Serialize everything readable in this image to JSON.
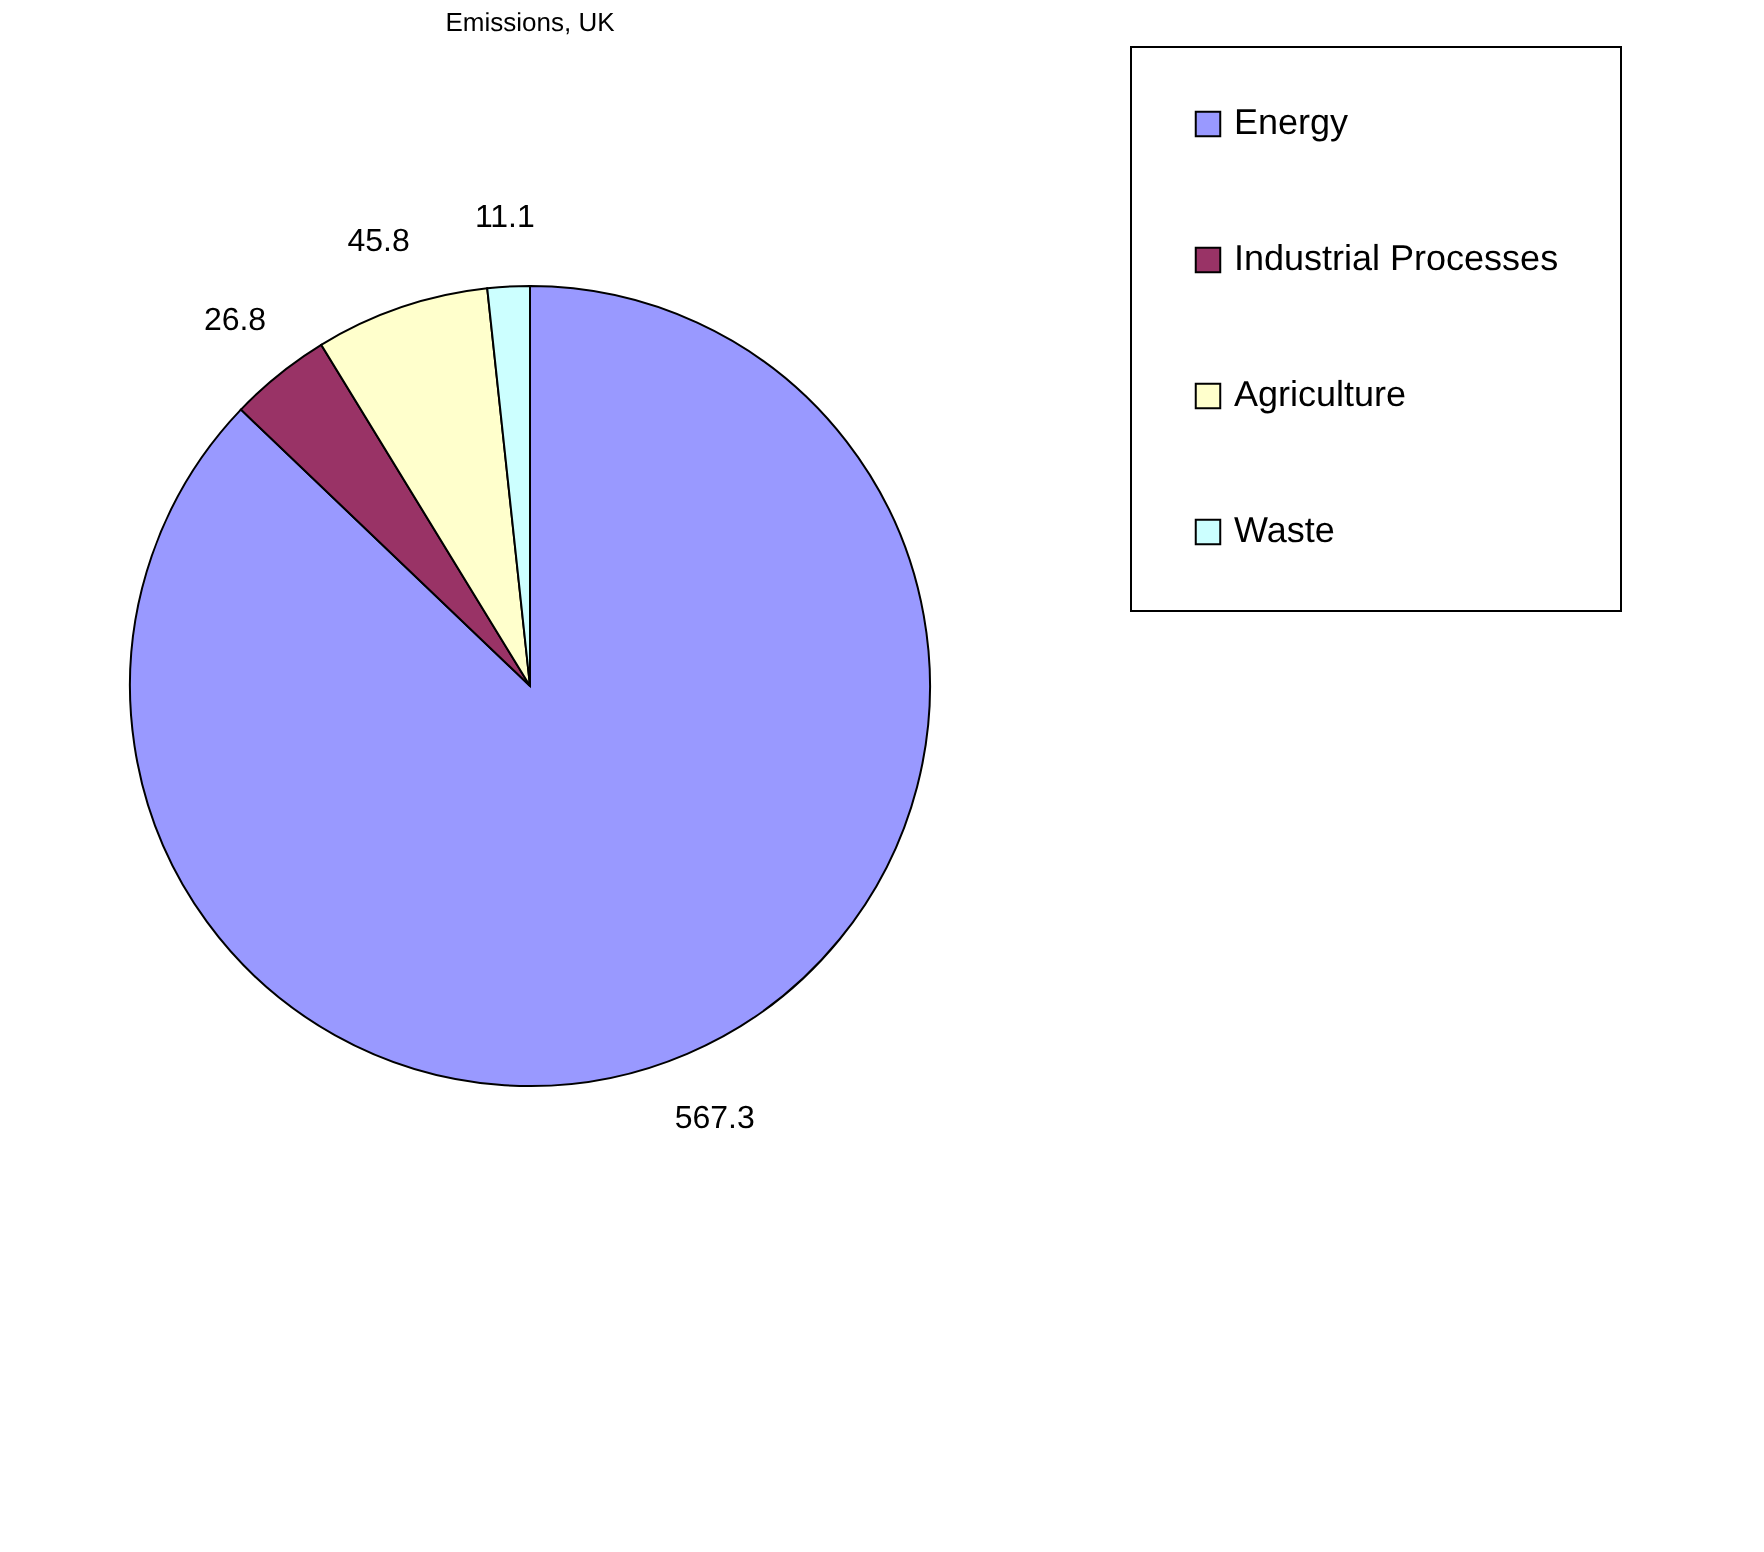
{
  "chart_data": {
    "type": "pie",
    "title": "Emissions, UK",
    "categories": [
      "Energy",
      "Industrial Processes",
      "Agriculture",
      "Waste"
    ],
    "values": [
      567.3,
      26.8,
      45.8,
      11.1
    ],
    "colors": [
      "#9999ff",
      "#993366",
      "#ffffcc",
      "#ccffff"
    ],
    "data_labels": true,
    "legend": "right"
  }
}
